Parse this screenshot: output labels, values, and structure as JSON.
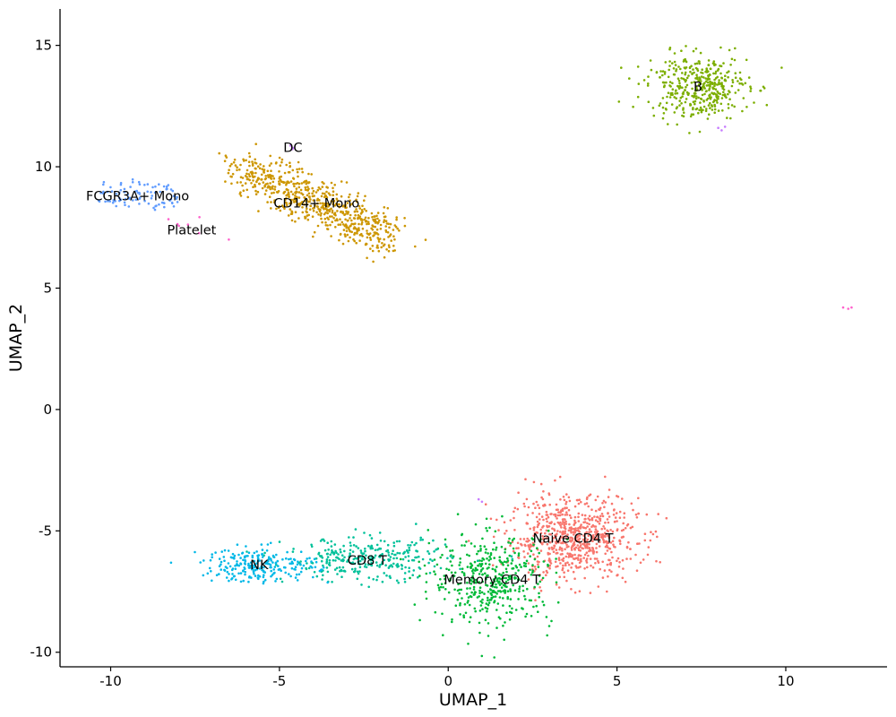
{
  "chart_data": {
    "type": "scatter",
    "title": "",
    "xlabel": "UMAP_1",
    "ylabel": "UMAP_2",
    "xlim": [
      -11.5,
      13.0
    ],
    "ylim": [
      -10.6,
      16.5
    ],
    "x_ticks": [
      -10,
      -5,
      0,
      5,
      10
    ],
    "y_ticks": [
      15,
      10,
      5,
      0,
      -5,
      -10
    ],
    "x_tick_labels": [
      "-10",
      "-5",
      "0",
      "5",
      "10"
    ],
    "y_tick_labels": [
      "15",
      "10",
      "5",
      "0",
      "-5",
      "-10"
    ],
    "grid": false,
    "legend": "none",
    "clusters": [
      {
        "label": "Naive CD4 T",
        "color": "#F8766D",
        "center": [
          3.7,
          -5.3
        ],
        "spread": [
          0.95,
          0.85
        ],
        "count": 700,
        "label_pos": [
          3.7,
          -5.3
        ]
      },
      {
        "label": "Memory CD4 T",
        "color": "#00BA38",
        "center": [
          1.3,
          -7.0
        ],
        "spread": [
          0.9,
          0.95
        ],
        "count": 420,
        "label_pos": [
          1.3,
          -7.0
        ]
      },
      {
        "label": "CD8 T",
        "color": "#00C19A",
        "center": [
          -2.4,
          -6.2
        ],
        "spread": [
          1.2,
          0.45
        ],
        "count": 300,
        "label_pos": [
          -2.4,
          -6.2
        ]
      },
      {
        "label": "NK",
        "color": "#00B8E7",
        "center": [
          -5.6,
          -6.4
        ],
        "spread": [
          0.85,
          0.35
        ],
        "count": 230,
        "label_pos": [
          -5.6,
          -6.4
        ]
      },
      {
        "label": "B",
        "color": "#7CAE00",
        "center": [
          7.4,
          13.3
        ],
        "spread": [
          0.75,
          0.65
        ],
        "count": 400,
        "label_pos": [
          7.4,
          13.3
        ]
      },
      {
        "label": "CD14+ Mono",
        "color": "#CD9600",
        "center": [
          -3.9,
          8.5
        ],
        "spread": [
          1.4,
          0.45
        ],
        "count": 650,
        "label_pos": [
          -3.9,
          8.5
        ]
      },
      {
        "label": "FCGR3A+ Mono",
        "color": "#619CFF",
        "center": [
          -9.2,
          8.8
        ],
        "spread": [
          0.6,
          0.3
        ],
        "count": 90,
        "label_pos": [
          -9.2,
          8.8
        ]
      },
      {
        "label": "DC",
        "color": "#C77CFF",
        "center": [
          -4.6,
          10.8
        ],
        "spread": [
          0.05,
          0.05
        ],
        "count": 3,
        "label_pos": [
          -4.6,
          10.8
        ]
      },
      {
        "label": "Platelet",
        "color": "#FF61CC",
        "center": [
          -7.7,
          7.5
        ],
        "spread": [
          0.4,
          0.2
        ],
        "count": 6,
        "label_pos": [
          -7.6,
          7.4
        ]
      }
    ],
    "outliers": [
      {
        "cluster": "Platelet",
        "x": 11.7,
        "y": 4.2
      },
      {
        "cluster": "Platelet",
        "x": 11.85,
        "y": 4.15
      },
      {
        "cluster": "Platelet",
        "x": 11.95,
        "y": 4.2
      },
      {
        "cluster": "Platelet",
        "x": -6.5,
        "y": 7.0
      },
      {
        "cluster": "DC",
        "x": 8.0,
        "y": 11.6
      },
      {
        "cluster": "DC",
        "x": 8.1,
        "y": 11.5
      },
      {
        "cluster": "DC",
        "x": 8.2,
        "y": 11.65
      },
      {
        "cluster": "DC",
        "x": 0.9,
        "y": -3.7
      },
      {
        "cluster": "DC",
        "x": 1.0,
        "y": -3.8
      }
    ]
  }
}
